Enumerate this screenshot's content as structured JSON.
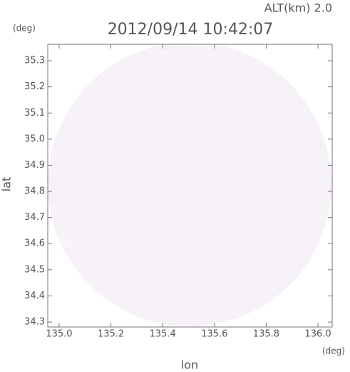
{
  "chart_data": {
    "type": "radar-image",
    "title": "2012/09/14 10:42:07",
    "subtitle": "ALT(km) 2.0",
    "x_label": "lon",
    "x_unit": "(deg)",
    "y_label": "lat",
    "y_unit": "(deg)",
    "xlim": [
      134.956,
      136.055
    ],
    "xticks": [
      {
        "value": 135,
        "label": "135.0"
      },
      135.2,
      135.4,
      135.6,
      135.8,
      {
        "value": 136,
        "label": "136.0"
      }
    ],
    "ylim": [
      34.281,
      35.363
    ],
    "yticks": [
      34.3,
      34.4,
      34.5,
      34.6,
      34.7,
      34.8,
      34.9,
      {
        "value": 35,
        "label": "35.0"
      },
      35.1,
      35.2,
      35.3
    ]
  }
}
